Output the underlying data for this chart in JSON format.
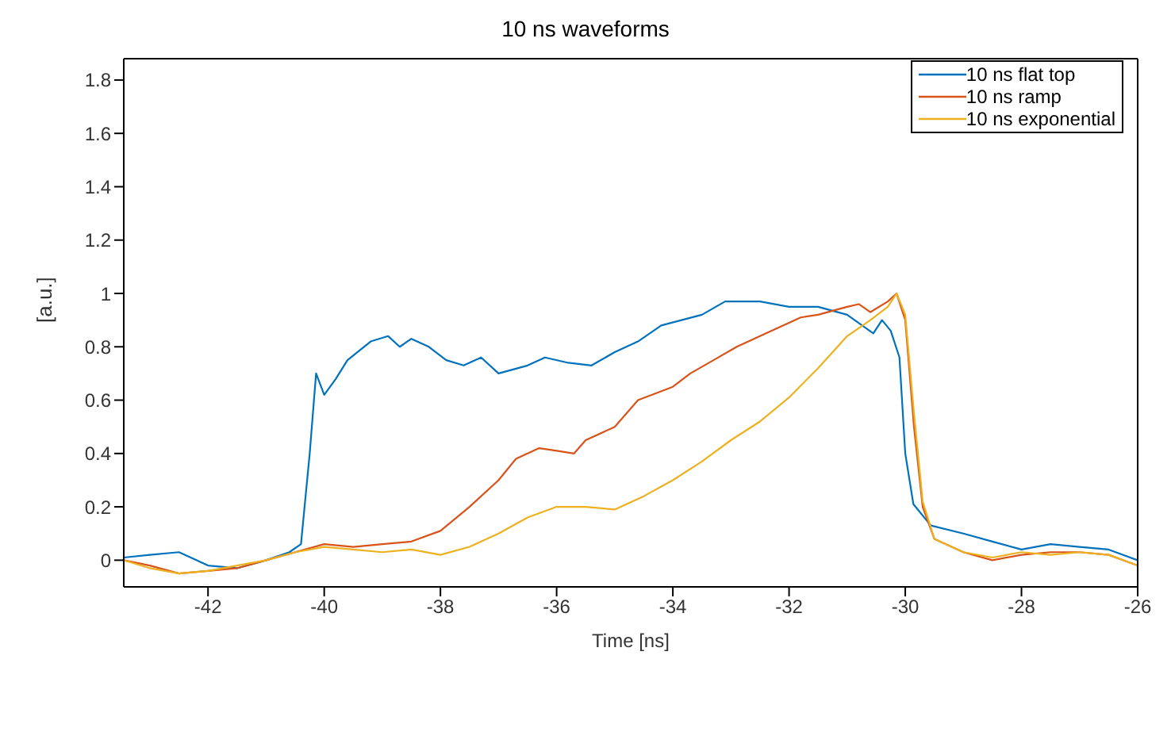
{
  "chart_data": {
    "type": "line",
    "title": "10 ns waveforms",
    "xlabel": "Time [ns]",
    "ylabel": "[a.u.]",
    "xlim": [
      -43.45,
      -26
    ],
    "xticks": [
      -42,
      -40,
      -38,
      -36,
      -34,
      -32,
      -30,
      -28,
      -26
    ],
    "ylim": [
      -0.1,
      1.88
    ],
    "yticks": [
      0,
      0.2,
      0.4,
      0.6,
      0.8,
      1,
      1.2,
      1.4,
      1.6,
      1.8
    ],
    "grid": false,
    "legend": "top right",
    "marker": "none",
    "line_style": "solid",
    "series": [
      {
        "name": "10 ns flat top",
        "color": "#0072bd",
        "x": [
          -43.45,
          -43,
          -42.5,
          -42.2,
          -42,
          -41.5,
          -41,
          -40.6,
          -40.4,
          -40.25,
          -40.14,
          -40,
          -39.8,
          -39.6,
          -39.2,
          -38.9,
          -38.7,
          -38.5,
          -38.2,
          -37.9,
          -37.6,
          -37.3,
          -37,
          -36.5,
          -36.2,
          -35.8,
          -35.4,
          -35,
          -34.6,
          -34.2,
          -33.5,
          -33.1,
          -32.5,
          -32,
          -31.5,
          -31,
          -30.55,
          -30.4,
          -30.25,
          -30.1,
          -30,
          -29.86,
          -29.56,
          -29,
          -28.5,
          -28,
          -27.5,
          -27,
          -26.5,
          -26
        ],
        "values": [
          0.01,
          0.02,
          0.03,
          0,
          -0.02,
          -0.03,
          0,
          0.03,
          0.06,
          0.4,
          0.7,
          0.62,
          0.68,
          0.75,
          0.82,
          0.84,
          0.8,
          0.83,
          0.8,
          0.75,
          0.73,
          0.76,
          0.7,
          0.73,
          0.76,
          0.74,
          0.73,
          0.78,
          0.82,
          0.88,
          0.92,
          0.97,
          0.97,
          0.95,
          0.95,
          0.92,
          0.85,
          0.9,
          0.86,
          0.76,
          0.4,
          0.21,
          0.13,
          0.1,
          0.07,
          0.04,
          0.06,
          0.05,
          0.04,
          0
        ]
      },
      {
        "name": "10 ns ramp",
        "color": "#d95319",
        "x": [
          -43.45,
          -43,
          -42.5,
          -42,
          -41.5,
          -41,
          -40.5,
          -40,
          -39.5,
          -39,
          -38.5,
          -38,
          -37.5,
          -37,
          -36.7,
          -36.3,
          -36,
          -35.7,
          -35.5,
          -35,
          -34.6,
          -34,
          -33.7,
          -33.3,
          -32.9,
          -32.5,
          -32,
          -31.8,
          -31.5,
          -31,
          -30.8,
          -30.6,
          -30.3,
          -30.15,
          -30,
          -29.85,
          -29.7,
          -29.5,
          -29,
          -28.5,
          -28,
          -27.5,
          -27,
          -26.5,
          -26
        ],
        "values": [
          0,
          -0.02,
          -0.05,
          -0.04,
          -0.03,
          0,
          0.03,
          0.06,
          0.05,
          0.06,
          0.07,
          0.11,
          0.2,
          0.3,
          0.38,
          0.42,
          0.41,
          0.4,
          0.45,
          0.5,
          0.6,
          0.65,
          0.7,
          0.75,
          0.8,
          0.84,
          0.89,
          0.91,
          0.92,
          0.95,
          0.96,
          0.93,
          0.97,
          1,
          0.9,
          0.5,
          0.2,
          0.08,
          0.03,
          0,
          0.02,
          0.03,
          0.03,
          0.02,
          -0.02
        ]
      },
      {
        "name": "10 ns exponential",
        "color": "#edb120",
        "x": [
          -43.45,
          -43,
          -42.5,
          -42,
          -41.5,
          -41,
          -40.5,
          -40,
          -39.5,
          -39,
          -38.5,
          -38,
          -37.5,
          -37,
          -36.5,
          -36,
          -35.5,
          -35,
          -34.5,
          -34,
          -33.5,
          -33,
          -32.5,
          -32,
          -31.5,
          -31,
          -30.6,
          -30.3,
          -30.15,
          -30,
          -29.85,
          -29.7,
          -29.5,
          -29,
          -28.5,
          -28,
          -27.5,
          -27,
          -26.5,
          -26
        ],
        "values": [
          0,
          -0.03,
          -0.05,
          -0.04,
          -0.02,
          0,
          0.03,
          0.05,
          0.04,
          0.03,
          0.04,
          0.02,
          0.05,
          0.1,
          0.16,
          0.2,
          0.2,
          0.19,
          0.24,
          0.3,
          0.37,
          0.45,
          0.52,
          0.61,
          0.72,
          0.84,
          0.9,
          0.95,
          1,
          0.92,
          0.55,
          0.22,
          0.08,
          0.03,
          0.01,
          0.03,
          0.02,
          0.03,
          0.02,
          -0.02
        ]
      }
    ]
  }
}
